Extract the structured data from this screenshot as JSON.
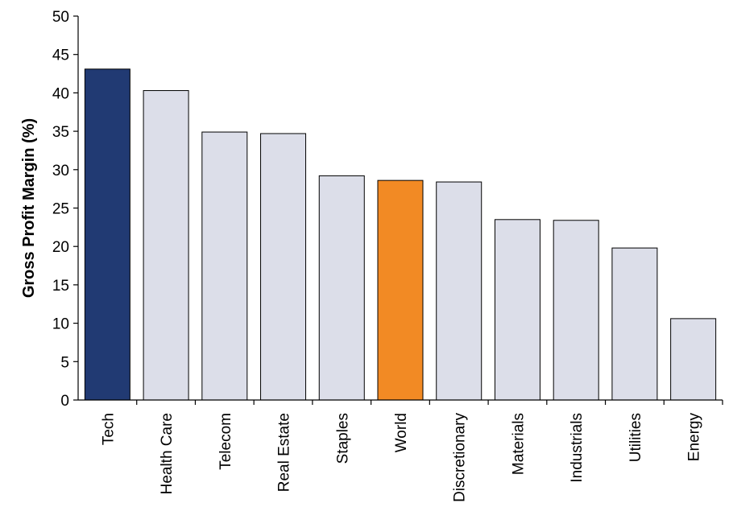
{
  "chart_data": {
    "type": "bar",
    "title": "",
    "xlabel": "",
    "ylabel": "Gross Profit Margin (%)",
    "ylim": [
      0,
      50
    ],
    "yticks": [
      0,
      5,
      10,
      15,
      20,
      25,
      30,
      35,
      40,
      45,
      50
    ],
    "grid": false,
    "categories": [
      "Tech",
      "Health Care",
      "Telecom",
      "Real Estate",
      "Staples",
      "World",
      "Discretionary",
      "Materials",
      "Industrials",
      "Utilities",
      "Energy"
    ],
    "values": [
      43.1,
      40.3,
      34.9,
      34.7,
      29.2,
      28.6,
      28.4,
      23.5,
      23.4,
      19.8,
      10.6
    ],
    "colors": [
      "#213a73",
      "#dcdee9",
      "#dcdee9",
      "#dcdee9",
      "#dcdee9",
      "#f28a24",
      "#dcdee9",
      "#dcdee9",
      "#dcdee9",
      "#dcdee9",
      "#dcdee9"
    ]
  }
}
